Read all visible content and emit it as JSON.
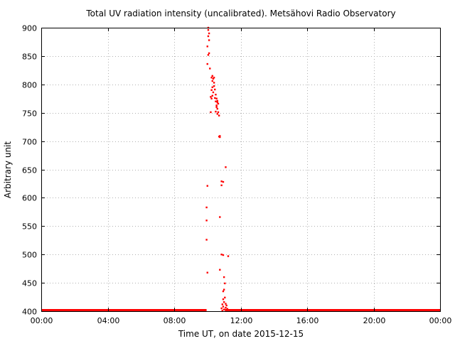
{
  "chart_data": {
    "type": "scatter",
    "title": "Total UV radiation intensity (uncalibrated). Metsähovi Radio Observatory",
    "xlabel": "Time UT, on date 2015-12-15",
    "ylabel": "Arbitrary unit",
    "xlim": [
      0,
      24
    ],
    "ylim": [
      400,
      900
    ],
    "grid": true,
    "point_color": "#ff0000",
    "x_ticks": [
      {
        "value": 0,
        "label": "00:00"
      },
      {
        "value": 4,
        "label": "04:00"
      },
      {
        "value": 8,
        "label": "08:00"
      },
      {
        "value": 12,
        "label": "12:00"
      },
      {
        "value": 16,
        "label": "16:00"
      },
      {
        "value": 20,
        "label": "20:00"
      },
      {
        "value": 24,
        "label": "00:00"
      }
    ],
    "y_ticks": [
      400,
      450,
      500,
      550,
      600,
      650,
      700,
      750,
      800,
      850,
      900
    ],
    "baseline_segments": [
      {
        "x_start": 0.0,
        "x_end": 9.95,
        "y": 400
      },
      {
        "x_start": 11.05,
        "x_end": 24.0,
        "y": 400
      }
    ],
    "points": [
      [
        10.0,
        468
      ],
      [
        9.95,
        526
      ],
      [
        9.95,
        560
      ],
      [
        9.95,
        583
      ],
      [
        10.0,
        621
      ],
      [
        10.0,
        836
      ],
      [
        10.05,
        852
      ],
      [
        10.1,
        855
      ],
      [
        10.0,
        867
      ],
      [
        10.1,
        878
      ],
      [
        10.05,
        885
      ],
      [
        10.1,
        890
      ],
      [
        10.05,
        896
      ],
      [
        10.05,
        900
      ],
      [
        10.15,
        828
      ],
      [
        10.25,
        812
      ],
      [
        10.3,
        815
      ],
      [
        10.35,
        810
      ],
      [
        10.3,
        806
      ],
      [
        10.4,
        812
      ],
      [
        10.4,
        803
      ],
      [
        10.3,
        795
      ],
      [
        10.25,
        790
      ],
      [
        10.4,
        797
      ],
      [
        10.35,
        786
      ],
      [
        10.45,
        791
      ],
      [
        10.2,
        778
      ],
      [
        10.25,
        775
      ],
      [
        10.3,
        780
      ],
      [
        10.45,
        776
      ],
      [
        10.5,
        782
      ],
      [
        10.5,
        770
      ],
      [
        10.55,
        775
      ],
      [
        10.6,
        768
      ],
      [
        10.55,
        760
      ],
      [
        10.6,
        757
      ],
      [
        10.65,
        766
      ],
      [
        10.6,
        771
      ],
      [
        10.55,
        763
      ],
      [
        10.65,
        751
      ],
      [
        10.6,
        748
      ],
      [
        10.7,
        745
      ],
      [
        10.5,
        752
      ],
      [
        10.2,
        751
      ],
      [
        10.7,
        708
      ],
      [
        10.75,
        707
      ],
      [
        10.75,
        709
      ],
      [
        11.1,
        654
      ],
      [
        10.85,
        629
      ],
      [
        10.95,
        628
      ],
      [
        10.85,
        622
      ],
      [
        10.75,
        566
      ],
      [
        10.85,
        500
      ],
      [
        10.95,
        499
      ],
      [
        11.25,
        497
      ],
      [
        10.75,
        473
      ],
      [
        11.0,
        460
      ],
      [
        11.05,
        449
      ],
      [
        11.0,
        438
      ],
      [
        10.95,
        435
      ],
      [
        11.05,
        424
      ],
      [
        10.95,
        421
      ],
      [
        11.0,
        416
      ],
      [
        11.1,
        413
      ],
      [
        11.15,
        410
      ],
      [
        10.9,
        412
      ],
      [
        10.95,
        408
      ],
      [
        10.85,
        405
      ],
      [
        11.0,
        403
      ],
      [
        11.1,
        406
      ],
      [
        11.2,
        404
      ],
      [
        10.9,
        401
      ]
    ]
  }
}
